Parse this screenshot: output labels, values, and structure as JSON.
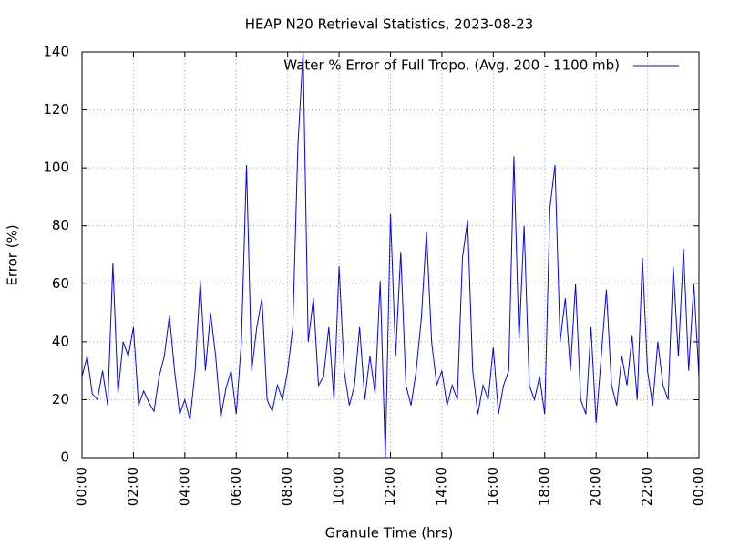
{
  "chart_data": {
    "type": "line",
    "title": "HEAP N20 Retrieval Statistics, 2023-08-23",
    "xlabel": "Granule Time (hrs)",
    "ylabel": "Error (%)",
    "xlim": [
      0,
      24
    ],
    "ylim": [
      0,
      140
    ],
    "xticks": [
      {
        "value": 0,
        "label": "00:00"
      },
      {
        "value": 2,
        "label": "02:00"
      },
      {
        "value": 4,
        "label": "04:00"
      },
      {
        "value": 6,
        "label": "06:00"
      },
      {
        "value": 8,
        "label": "08:00"
      },
      {
        "value": 10,
        "label": "10:00"
      },
      {
        "value": 12,
        "label": "12:00"
      },
      {
        "value": 14,
        "label": "14:00"
      },
      {
        "value": 16,
        "label": "16:00"
      },
      {
        "value": 18,
        "label": "18:00"
      },
      {
        "value": 20,
        "label": "20:00"
      },
      {
        "value": 22,
        "label": "22:00"
      },
      {
        "value": 24,
        "label": "00:00"
      }
    ],
    "yticks": [
      0,
      20,
      40,
      60,
      80,
      100,
      120,
      140
    ],
    "grid": true,
    "legend": "top-right",
    "x": [
      0,
      0.2,
      0.4,
      0.6,
      0.8,
      1,
      1.2,
      1.4,
      1.6,
      1.8,
      2,
      2.2,
      2.4,
      2.6,
      2.8,
      3,
      3.2,
      3.4,
      3.6,
      3.8,
      4,
      4.2,
      4.4,
      4.6,
      4.8,
      5,
      5.2,
      5.4,
      5.6,
      5.8,
      6,
      6.2,
      6.4,
      6.6,
      6.8,
      7,
      7.2,
      7.4,
      7.6,
      7.8,
      8,
      8.2,
      8.4,
      8.6,
      8.8,
      9,
      9.2,
      9.4,
      9.6,
      9.8,
      10,
      10.2,
      10.4,
      10.6,
      10.8,
      11,
      11.2,
      11.4,
      11.6,
      11.8,
      12,
      12.2,
      12.4,
      12.6,
      12.8,
      13,
      13.2,
      13.4,
      13.6,
      13.8,
      14,
      14.2,
      14.4,
      14.6,
      14.8,
      15,
      15.2,
      15.4,
      15.6,
      15.8,
      16,
      16.2,
      16.4,
      16.6,
      16.8,
      17,
      17.2,
      17.4,
      17.6,
      17.8,
      18,
      18.2,
      18.4,
      18.6,
      18.8,
      19,
      19.2,
      19.4,
      19.6,
      19.8,
      20,
      20.2,
      20.4,
      20.6,
      20.8,
      21,
      21.2,
      21.4,
      21.6,
      21.8,
      22,
      22.2,
      22.4,
      22.6,
      22.8,
      23,
      23.2,
      23.4,
      23.6,
      23.8,
      24
    ],
    "series": [
      {
        "name": "Water % Error of Full Tropo. (Avg. 200 - 1100 mb)",
        "color": "#0000ff",
        "values": [
          28,
          35,
          22,
          20,
          30,
          18,
          67,
          22,
          40,
          35,
          45,
          18,
          23,
          19,
          16,
          28,
          35,
          49,
          30,
          15,
          20,
          13,
          30,
          61,
          30,
          50,
          35,
          14,
          24,
          30,
          15,
          40,
          101,
          30,
          45,
          55,
          20,
          16,
          25,
          20,
          30,
          45,
          108,
          140,
          40,
          55,
          25,
          28,
          45,
          20,
          66,
          30,
          18,
          25,
          45,
          20,
          35,
          22,
          61,
          0,
          84,
          35,
          71,
          25,
          18,
          30,
          48,
          78,
          40,
          25,
          30,
          18,
          25,
          20,
          69,
          82,
          30,
          15,
          25,
          20,
          38,
          15,
          25,
          30,
          104,
          40,
          80,
          25,
          20,
          28,
          15,
          86,
          101,
          40,
          55,
          30,
          60,
          20,
          15,
          45,
          12,
          35,
          58,
          25,
          18,
          35,
          25,
          42,
          20,
          69,
          30,
          18,
          40,
          25,
          20,
          66,
          35,
          72,
          30,
          60,
          28
        ]
      }
    ]
  }
}
